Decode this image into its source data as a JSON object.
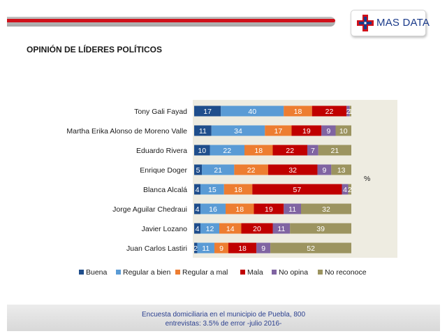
{
  "header": {
    "logo_text": "MAS DATA",
    "title": "OPINIÓN DE LÍDERES POLÍTICOS"
  },
  "chart_data": {
    "type": "bar",
    "orientation": "horizontal",
    "stacked": true,
    "unit_label": "%",
    "categories": [
      "Tony Gali Fayad",
      "Martha Erika Alonso de Moreno Valle",
      "Eduardo Rivera",
      "Enrique Doger",
      "Blanca Alcalá",
      "Jorge Aguilar Chedraui",
      "Javier Lozano",
      "Juan Carlos Lastiri"
    ],
    "series": [
      {
        "name": "Buena",
        "color": "#1f4e8c",
        "values": [
          17,
          11,
          10,
          5,
          4,
          4,
          4,
          2
        ]
      },
      {
        "name": "Regular a bien",
        "color": "#5a9bd5",
        "values": [
          40,
          34,
          22,
          21,
          15,
          16,
          12,
          11
        ]
      },
      {
        "name": "Regular a mal",
        "color": "#ed7d31",
        "values": [
          18,
          17,
          18,
          22,
          18,
          18,
          14,
          9
        ]
      },
      {
        "name": "Mala",
        "color": "#c00000",
        "values": [
          22,
          19,
          22,
          32,
          57,
          19,
          20,
          18
        ]
      },
      {
        "name": "No opina",
        "color": "#8064a2",
        "values": [
          2,
          9,
          7,
          9,
          4,
          11,
          11,
          9
        ]
      },
      {
        "name": "No reconoce",
        "color": "#9c9460",
        "values": [
          1,
          10,
          21,
          13,
          2,
          32,
          39,
          52
        ]
      }
    ],
    "legend_position": "bottom",
    "grid": false
  },
  "footer": {
    "line1": "Encuesta domiciliaria en el municipio de Puebla, 800",
    "line2": "entrevistas: 3.5% de error -julio 2016-"
  }
}
